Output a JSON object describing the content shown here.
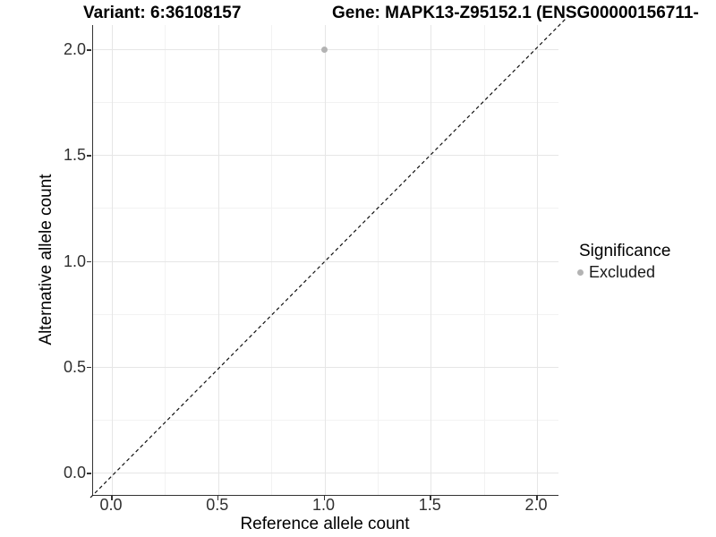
{
  "titles": {
    "variant": "Variant: 6:36108157",
    "gene": "Gene: MAPK13-Z95152.1 (ENSG00000156711-"
  },
  "chart_data": {
    "type": "scatter",
    "title": "Variant: 6:36108157    Gene: MAPK13-Z95152.1 (ENSG00000156711-",
    "xlabel": "Reference allele count",
    "ylabel": "Alternative allele count",
    "xlim": [
      -0.09,
      2.1
    ],
    "ylim": [
      -0.11,
      2.11
    ],
    "x_ticks": [
      0,
      0.5,
      1,
      1.5,
      2
    ],
    "x_tick_labels": [
      "0.0",
      "0.5",
      "1.0",
      "1.5",
      "2.0"
    ],
    "y_ticks": [
      0,
      0.5,
      1,
      1.5,
      2
    ],
    "y_tick_labels": [
      "0.0",
      "0.5",
      "1.0",
      "1.5",
      "2.0"
    ],
    "minor_ticks_x": [
      0.25,
      0.75,
      1.25,
      1.75
    ],
    "minor_ticks_y": [
      0.25,
      0.75,
      1.25,
      1.75
    ],
    "grid": true,
    "series": [
      {
        "name": "Excluded",
        "color": "#b3b3b3",
        "points": [
          {
            "x": 1.0,
            "y": 2.0
          }
        ]
      }
    ],
    "reference_line": {
      "type": "identity",
      "slope": 1,
      "intercept": 0,
      "style": "dashed",
      "color": "#111111"
    },
    "legend": {
      "title": "Significance",
      "position": "right",
      "items": [
        {
          "label": "Excluded",
          "color": "#b3b3b3",
          "marker": "circle"
        }
      ]
    }
  },
  "style": {
    "background": "#ffffff",
    "grid_major": "#e6e6e6",
    "grid_minor": "#f2f2f2",
    "axis_line": "#333333",
    "tick_label_color": "#303030",
    "text_color": "#000000"
  }
}
